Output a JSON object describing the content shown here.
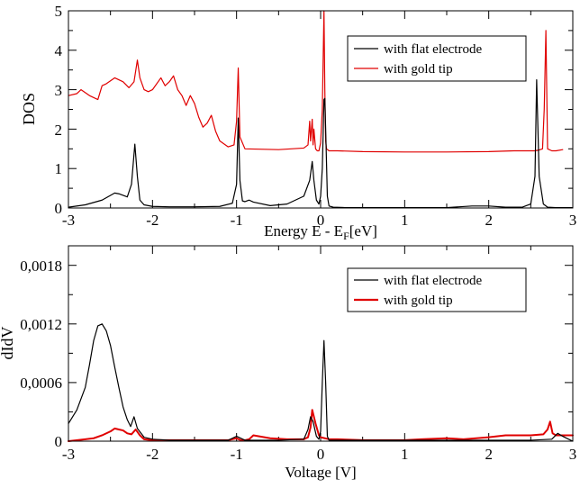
{
  "chart_data": [
    {
      "type": "line",
      "xlabel": "Energy E - E",
      "xlabel_sub": "F",
      "xlabel_unit": "[eV]",
      "ylabel": "DOS",
      "xlim": [
        -3,
        3
      ],
      "ylim": [
        0,
        5
      ],
      "xticks": [
        "-3",
        "-2",
        "-1",
        "0",
        "1",
        "2",
        "3"
      ],
      "yticks": [
        "0",
        "1",
        "2",
        "3",
        "4",
        "5"
      ],
      "legend": {
        "position": "top-right",
        "entries": [
          "with flat electrode",
          "with gold tip"
        ]
      },
      "series": [
        {
          "name": "with flat electrode",
          "color": "#000000",
          "x": [
            -3.0,
            -2.8,
            -2.6,
            -2.5,
            -2.45,
            -2.4,
            -2.3,
            -2.25,
            -2.21,
            -2.18,
            -2.15,
            -2.1,
            -2.0,
            -1.8,
            -1.5,
            -1.2,
            -1.05,
            -1.0,
            -0.98,
            -0.96,
            -0.93,
            -0.9,
            -0.85,
            -0.8,
            -0.6,
            -0.4,
            -0.2,
            -0.13,
            -0.1,
            -0.08,
            -0.05,
            -0.02,
            0.0,
            0.02,
            0.04,
            0.05,
            0.06,
            0.08,
            0.1,
            0.15,
            0.3,
            0.6,
            1.0,
            1.5,
            1.8,
            2.0,
            2.2,
            2.4,
            2.5,
            2.55,
            2.57,
            2.6,
            2.65,
            2.7,
            2.8,
            3.0
          ],
          "y": [
            0.02,
            0.08,
            0.2,
            0.32,
            0.38,
            0.36,
            0.28,
            0.6,
            1.62,
            0.8,
            0.2,
            0.08,
            0.04,
            0.03,
            0.03,
            0.04,
            0.12,
            0.6,
            2.28,
            0.7,
            0.18,
            0.16,
            0.2,
            0.15,
            0.06,
            0.1,
            0.3,
            0.7,
            1.18,
            0.7,
            0.2,
            0.1,
            0.3,
            1.0,
            2.75,
            2.78,
            2.0,
            0.3,
            0.05,
            0.02,
            0.01,
            0.01,
            0.01,
            0.01,
            0.05,
            0.05,
            0.02,
            0.02,
            0.1,
            0.8,
            3.25,
            0.8,
            0.1,
            0.02,
            0.01,
            0.01
          ]
        },
        {
          "name": "with gold tip",
          "color": "#e00000",
          "x": [
            -3.0,
            -2.9,
            -2.85,
            -2.75,
            -2.65,
            -2.6,
            -2.55,
            -2.45,
            -2.35,
            -2.28,
            -2.22,
            -2.18,
            -2.15,
            -2.1,
            -2.05,
            -2.0,
            -1.9,
            -1.85,
            -1.8,
            -1.75,
            -1.7,
            -1.65,
            -1.6,
            -1.55,
            -1.5,
            -1.45,
            -1.4,
            -1.35,
            -1.3,
            -1.25,
            -1.2,
            -1.1,
            -1.03,
            -1.0,
            -0.98,
            -0.96,
            -0.9,
            -0.5,
            -0.2,
            -0.15,
            -0.13,
            -0.12,
            -0.1,
            -0.09,
            -0.08,
            -0.06,
            -0.04,
            -0.02,
            0.0,
            0.02,
            0.04,
            0.05,
            0.06,
            0.07,
            0.1,
            0.2,
            0.5,
            1.0,
            1.5,
            2.0,
            2.3,
            2.5,
            2.55,
            2.6,
            2.64,
            2.66,
            2.68,
            2.7,
            2.75,
            2.8,
            2.88
          ],
          "y": [
            2.85,
            2.9,
            3.0,
            2.85,
            2.75,
            3.1,
            3.15,
            3.3,
            3.2,
            3.05,
            3.2,
            3.75,
            3.3,
            3.0,
            2.95,
            3.0,
            3.3,
            3.1,
            3.2,
            3.35,
            3.0,
            2.85,
            2.6,
            2.85,
            2.65,
            2.3,
            2.05,
            2.15,
            2.35,
            1.95,
            1.7,
            1.55,
            1.6,
            2.2,
            3.55,
            1.8,
            1.5,
            1.48,
            1.52,
            1.6,
            2.2,
            1.7,
            2.25,
            1.6,
            2.0,
            1.5,
            1.45,
            1.45,
            1.65,
            2.5,
            5.0,
            3.0,
            1.7,
            1.5,
            1.45,
            1.45,
            1.43,
            1.42,
            1.42,
            1.43,
            1.45,
            1.45,
            1.45,
            1.47,
            1.5,
            2.5,
            4.5,
            1.5,
            1.45,
            1.45,
            1.48
          ]
        }
      ]
    },
    {
      "type": "line",
      "xlabel": "Voltage [V]",
      "ylabel": "dIdV",
      "xlim": [
        -3,
        3
      ],
      "ylim": [
        0,
        0.002
      ],
      "xticks": [
        "-3",
        "-2",
        "-1",
        "0",
        "1",
        "2",
        "3"
      ],
      "yticks": [
        "0",
        "0,0006",
        "0,0012",
        "0,0018"
      ],
      "legend": {
        "position": "top-right",
        "entries": [
          "with flat electrode",
          "with gold tip"
        ]
      },
      "series": [
        {
          "name": "with flat electrode",
          "color": "#000000",
          "x": [
            -3.0,
            -2.9,
            -2.8,
            -2.75,
            -2.7,
            -2.65,
            -2.6,
            -2.55,
            -2.5,
            -2.45,
            -2.4,
            -2.35,
            -2.3,
            -2.26,
            -2.22,
            -2.18,
            -2.1,
            -2.0,
            -1.8,
            -1.5,
            -1.1,
            -1.0,
            -0.9,
            -0.5,
            -0.2,
            -0.15,
            -0.12,
            -0.09,
            -0.05,
            -0.02,
            0.0,
            0.02,
            0.04,
            0.06,
            0.08,
            0.1,
            0.2,
            0.5,
            1.0,
            1.5,
            2.0,
            2.5,
            2.75,
            2.82,
            2.88,
            2.95,
            3.0
          ],
          "y": [
            0.00018,
            0.00032,
            0.00055,
            0.00078,
            0.00103,
            0.00118,
            0.0012,
            0.00113,
            0.00098,
            0.00076,
            0.00055,
            0.00035,
            0.00022,
            0.00015,
            0.00025,
            0.00013,
            4e-05,
            2e-05,
            1e-05,
            1e-05,
            1e-05,
            5e-05,
            1e-05,
            1e-05,
            2e-05,
            0.00012,
            0.00025,
            0.0002,
            5e-05,
            2e-05,
            0.0001,
            0.0006,
            0.00103,
            0.0006,
            5e-05,
            1e-05,
            1e-05,
            1e-05,
            1e-05,
            1e-05,
            1e-05,
            1e-05,
            2e-05,
            8e-05,
            5e-05,
            2e-05,
            0.0
          ]
        },
        {
          "name": "with gold tip",
          "color": "#e00000",
          "x": [
            -3.0,
            -2.8,
            -2.7,
            -2.6,
            -2.5,
            -2.45,
            -2.4,
            -2.35,
            -2.3,
            -2.25,
            -2.2,
            -2.15,
            -2.1,
            -2.0,
            -1.5,
            -1.1,
            -1.0,
            -0.95,
            -0.9,
            -0.85,
            -0.8,
            -0.6,
            -0.4,
            -0.2,
            -0.15,
            -0.12,
            -0.1,
            -0.08,
            -0.06,
            -0.04,
            -0.02,
            0.0,
            0.05,
            0.1,
            0.2,
            0.5,
            1.0,
            1.2,
            1.5,
            1.7,
            2.0,
            2.2,
            2.5,
            2.65,
            2.7,
            2.73,
            2.76,
            2.8,
            2.85,
            2.9,
            3.0
          ],
          "y": [
            0.0,
            2e-05,
            3e-05,
            6e-05,
            0.0001,
            0.00013,
            0.00012,
            0.00011,
            8e-05,
            7e-05,
            0.00012,
            6e-05,
            2e-05,
            1e-05,
            1e-05,
            1e-05,
            3e-05,
            1e-05,
            1e-05,
            2e-05,
            6e-05,
            3e-05,
            2e-05,
            2e-05,
            4e-05,
            0.00014,
            0.00032,
            0.00025,
            0.00018,
            0.00012,
            6e-05,
            4e-05,
            3e-05,
            2e-05,
            2e-05,
            1e-05,
            1e-05,
            2e-05,
            3e-05,
            2e-05,
            4e-05,
            6e-05,
            6e-05,
            7e-05,
            0.00012,
            0.0002,
            8e-05,
            6e-05,
            6e-05,
            6e-05,
            6e-05
          ]
        }
      ]
    }
  ]
}
